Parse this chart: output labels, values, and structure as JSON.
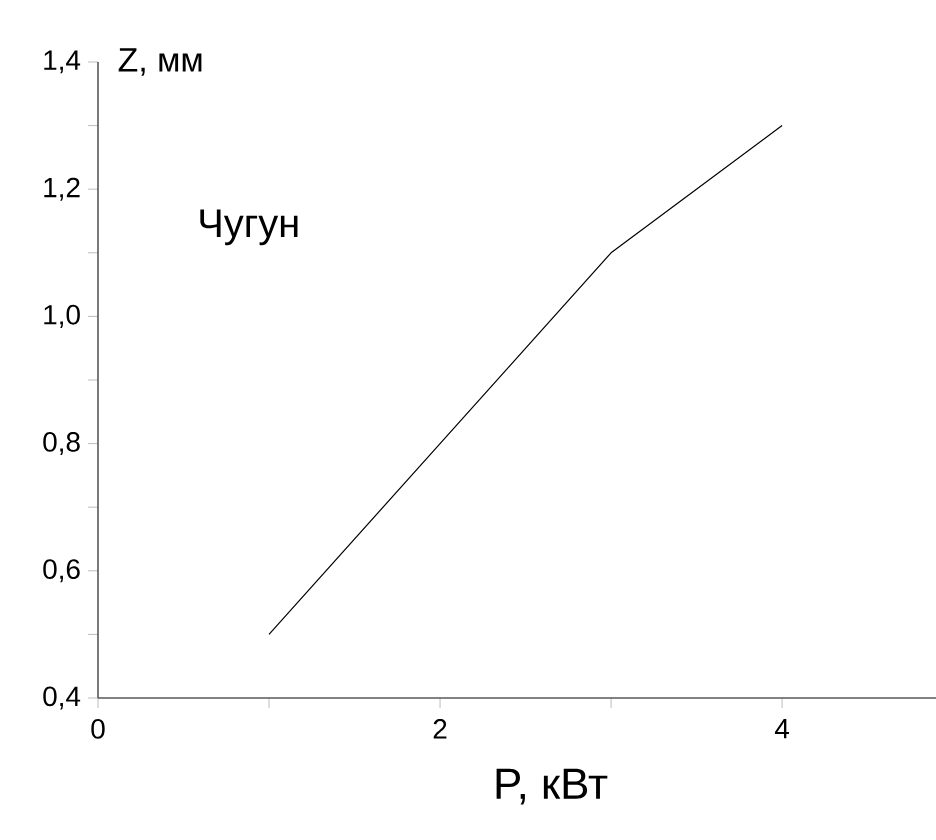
{
  "chart_data": {
    "type": "line",
    "xlabel": "P, кВт",
    "ylabel": "Z, мм",
    "annotations": [
      "Чугун"
    ],
    "x": [
      1,
      2,
      3,
      4
    ],
    "series": [
      {
        "color": "#000000",
        "values": [
          0.5,
          0.8,
          1.1,
          1.3
        ]
      }
    ],
    "xlim": [
      0,
      4.9
    ],
    "ylim": [
      0.4,
      1.4
    ],
    "xticks": [
      0,
      {
        "value": 1,
        "label": null
      },
      2,
      {
        "value": 3,
        "label": null
      },
      4
    ],
    "yticks": [
      {
        "value": 0.4,
        "label": "0,4"
      },
      {
        "value": 0.5,
        "label": null
      },
      {
        "value": 0.6,
        "label": "0,6"
      },
      {
        "value": 0.7,
        "label": null
      },
      {
        "value": 0.8,
        "label": "0,8"
      },
      {
        "value": 0.9,
        "label": null
      },
      {
        "value": 1.0,
        "label": "1,0"
      },
      {
        "value": 1.1,
        "label": null
      },
      {
        "value": 1.2,
        "label": "1,2"
      },
      {
        "value": 1.3,
        "label": null
      },
      {
        "value": 1.4,
        "label": "1,4"
      }
    ],
    "grid": false
  }
}
